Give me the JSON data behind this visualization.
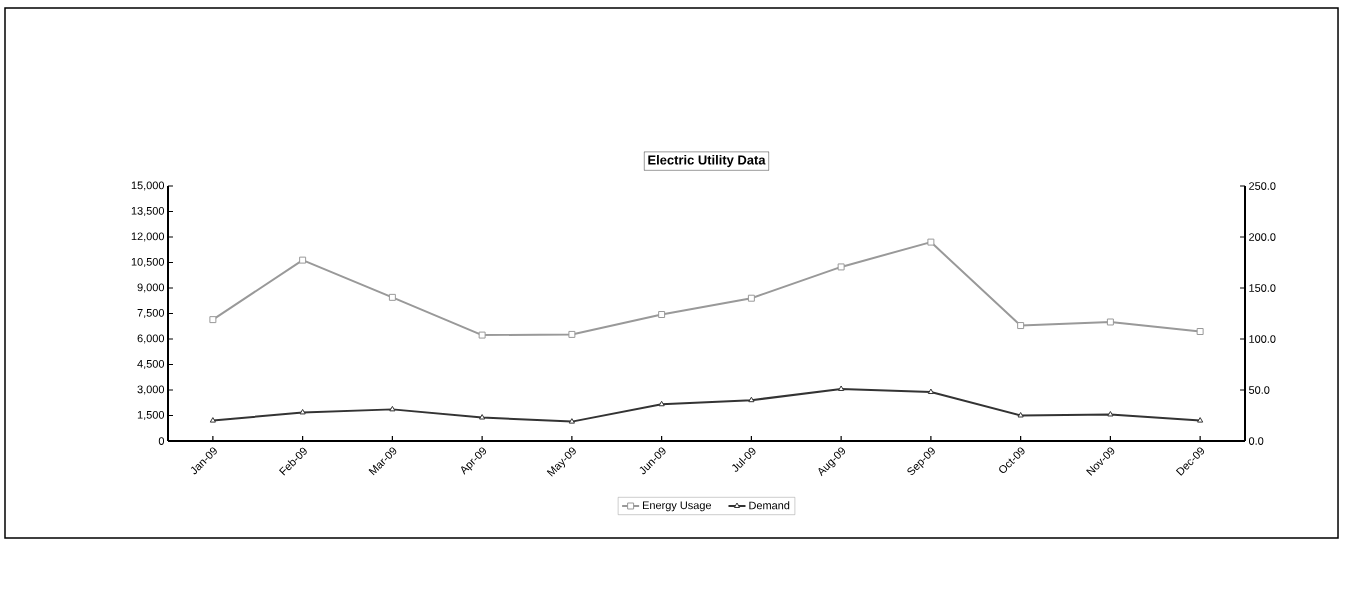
{
  "chart_data": {
    "type": "line",
    "title": "Electric Utility Data",
    "categories": [
      "Jan-09",
      "Feb-09",
      "Mar-09",
      "Apr-09",
      "May-09",
      "Jun-09",
      "Jul-09",
      "Aug-09",
      "Sep-09",
      "Oct-09",
      "Nov-09",
      "Dec-09"
    ],
    "series": [
      {
        "name": "Energy Usage",
        "color": "#999999",
        "marker": "square",
        "values": [
          7140,
          10640,
          8450,
          6230,
          6270,
          7440,
          8400,
          10240,
          11700,
          6790,
          7000,
          6440
        ]
      },
      {
        "name": "Demand",
        "color": "#333333",
        "marker": "triangle",
        "axis": "y2",
        "values": [
          20,
          28,
          31,
          23,
          19,
          36,
          40,
          51,
          48,
          25,
          26,
          20
        ]
      }
    ],
    "ylim": [
      0,
      15000
    ],
    "yticks": [
      {
        "value": 0,
        "label": "0"
      },
      {
        "value": 1500,
        "label": "1,500"
      },
      {
        "value": 3000,
        "label": "3,000"
      },
      {
        "value": 4500,
        "label": "4,500"
      },
      {
        "value": 6000,
        "label": "6,000"
      },
      {
        "value": 7500,
        "label": "7,500"
      },
      {
        "value": 9000,
        "label": "9,000"
      },
      {
        "value": 10500,
        "label": "10,500"
      },
      {
        "value": 12000,
        "label": "12,000"
      },
      {
        "value": 13500,
        "label": "13,500"
      },
      {
        "value": 15000,
        "label": "15,000"
      }
    ],
    "y2lim": [
      0,
      250
    ],
    "y2ticks": [
      {
        "value": 0,
        "label": "0.0"
      },
      {
        "value": 50,
        "label": "50.0"
      },
      {
        "value": 100,
        "label": "100.0"
      },
      {
        "value": 150,
        "label": "150.0"
      },
      {
        "value": 200,
        "label": "200.0"
      },
      {
        "value": 250,
        "label": "250.0"
      }
    ],
    "legend": "bottom",
    "grid": false,
    "line_style": "solid"
  }
}
